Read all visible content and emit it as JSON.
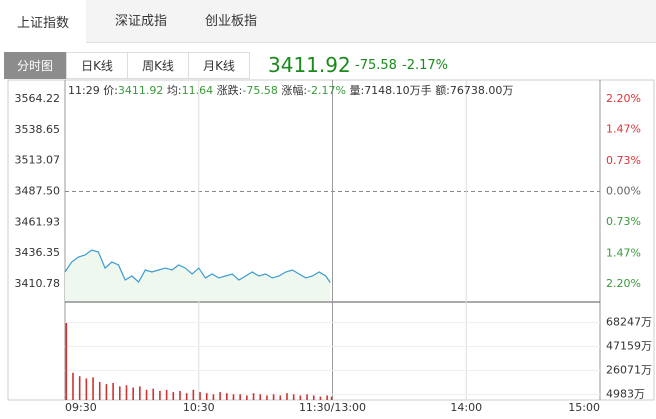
{
  "tabs": [
    "上证指数",
    "深证成指",
    "创业板指"
  ],
  "period_tabs": [
    "分时图",
    "日K线",
    "周K线",
    "月K线"
  ],
  "quote": {
    "price": "3411.92",
    "change": "-75.58",
    "percent": "-2.17%"
  },
  "info": {
    "time": "11:29",
    "items": [
      {
        "label": "价:",
        "value": "3411.92"
      },
      {
        "label": "均:",
        "value": "11.64"
      },
      {
        "label": "涨跌:",
        "value": "-75.58"
      },
      {
        "label": "涨幅:",
        "value": "-2.17%"
      },
      {
        "label": "量:",
        "value": "7148.10万手"
      },
      {
        "label": "额:",
        "value": "76738.00万"
      }
    ]
  },
  "chart_data": [
    {
      "type": "line",
      "color": "#3d9bd0",
      "area_color": "#eef8ee",
      "x": [
        0,
        3,
        6,
        9,
        12,
        15,
        18,
        21,
        24,
        27,
        30,
        33,
        36,
        39,
        42,
        45,
        48,
        51,
        54,
        57,
        60,
        63,
        66,
        69,
        72,
        75,
        78,
        81,
        84,
        87,
        90,
        93,
        96,
        99,
        102,
        105,
        108,
        111,
        114,
        117,
        119
      ],
      "values": [
        3420.7,
        3429.0,
        3433.2,
        3434.8,
        3439.0,
        3437.3,
        3424.0,
        3429.0,
        3426.5,
        3414.1,
        3417.4,
        3412.4,
        3422.4,
        3420.7,
        3422.4,
        3424.0,
        3422.4,
        3426.5,
        3424.0,
        3419.1,
        3424.0,
        3415.8,
        3419.1,
        3415.8,
        3417.4,
        3419.1,
        3414.1,
        3417.4,
        3420.7,
        3417.4,
        3419.1,
        3415.8,
        3417.4,
        3420.7,
        3422.4,
        3419.1,
        3415.8,
        3417.4,
        3420.7,
        3417.4,
        3411.92
      ],
      "xlim": [
        0,
        240
      ],
      "xticks": [
        {
          "value": 0,
          "label": "09:30"
        },
        {
          "value": 60,
          "label": "10:30"
        },
        {
          "value": 120,
          "label": "11:30/13:00"
        },
        {
          "value": 180,
          "label": "14:00"
        },
        {
          "value": 240,
          "label": "15:00"
        }
      ],
      "ylim": [
        3395.85,
        3578.32
      ],
      "yticks": [
        3564.22,
        3538.65,
        3513.07,
        {
          "value": 3487.5,
          "label": "3487.50"
        },
        3461.93,
        3436.35,
        3410.78
      ],
      "y2lim": [
        -2.628,
        2.604
      ],
      "y2ticks": [
        {
          "value": 2.2,
          "label": "2.20%"
        },
        {
          "value": 1.47,
          "label": "1.47%"
        },
        {
          "value": 0.73,
          "label": "0.73%"
        },
        {
          "value": 0,
          "label": "0.00%"
        },
        {
          "value": -0.73,
          "label": "0.73%"
        },
        {
          "value": -1.47,
          "label": "1.47%"
        },
        {
          "value": -2.2,
          "label": "2.20%"
        }
      ]
    },
    {
      "type": "bar",
      "color": "#cc3333",
      "x": [
        0,
        3,
        6,
        9,
        12,
        15,
        18,
        21,
        24,
        27,
        30,
        33,
        36,
        39,
        42,
        45,
        48,
        51,
        54,
        57,
        60,
        63,
        66,
        69,
        72,
        75,
        78,
        81,
        84,
        87,
        90,
        93,
        96,
        99,
        102,
        105,
        108,
        111,
        114,
        117,
        119
      ],
      "values": [
        68000,
        24000,
        21000,
        19000,
        20000,
        16000,
        14000,
        15000,
        12000,
        13000,
        11000,
        12000,
        9000,
        10000,
        8000,
        9000,
        7000,
        8000,
        6000,
        9000,
        7000,
        6000,
        5000,
        7000,
        6000,
        5000,
        5000,
        4000,
        6000,
        5000,
        4000,
        5000,
        4000,
        6000,
        5000,
        4000,
        5000,
        4000,
        3000,
        4000,
        3000
      ],
      "xlim": [
        0,
        240
      ],
      "ylim": [
        0,
        86475
      ],
      "yticks": [
        {
          "value": 68247,
          "label": "68247万"
        },
        {
          "value": 47159,
          "label": "47159万"
        },
        {
          "value": 26071,
          "label": "26071万"
        },
        {
          "value": 4983,
          "label": "4983万"
        }
      ]
    }
  ]
}
